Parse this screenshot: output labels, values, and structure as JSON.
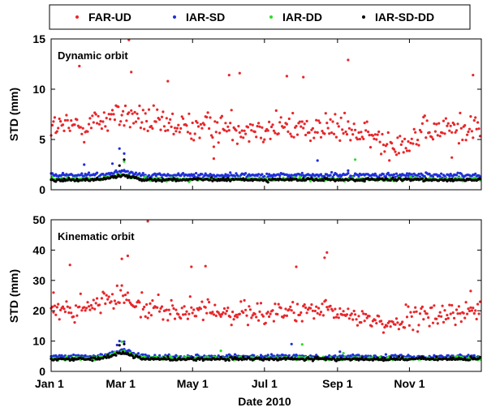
{
  "chart_data": {
    "type": "scatter",
    "title": "",
    "xlabel": "Date 2010",
    "x_range_days": [
      0,
      365
    ],
    "x_ticks": [
      {
        "label": "Jan 1",
        "day": 0
      },
      {
        "label": "Mar 1",
        "day": 59
      },
      {
        "label": "May 1",
        "day": 120
      },
      {
        "label": "Jul 1",
        "day": 181
      },
      {
        "label": "Sep 1",
        "day": 243
      },
      {
        "label": "Nov 1",
        "day": 304
      }
    ],
    "legend": {
      "placement": "top",
      "entries": [
        {
          "name": "FAR-UD",
          "color": "#e8262a"
        },
        {
          "name": "IAR-SD",
          "color": "#1f2fd8"
        },
        {
          "name": "IAR-DD",
          "color": "#2edc2e"
        },
        {
          "name": "IAR-SD-DD",
          "color": "#000000"
        }
      ]
    },
    "panels": [
      {
        "id": "dynamic",
        "label": "Dynamic orbit",
        "ylabel": "STD (mm)",
        "ylim": [
          0,
          15
        ],
        "yticks": [
          0,
          5,
          10,
          15
        ],
        "series_model": {
          "FAR-UD": {
            "mean": 6.2,
            "spread": 1.9,
            "min": 2.9,
            "outliers": [
              [
                24,
                12.3
              ],
              [
                66,
                14.9
              ],
              [
                68,
                11.7
              ],
              [
                99,
                10.8
              ],
              [
                151,
                11.4
              ],
              [
                160,
                11.6
              ],
              [
                200,
                11.3
              ],
              [
                214,
                11.2
              ],
              [
                252,
                12.9
              ],
              [
                358,
                11.4
              ],
              [
                340,
                3.2
              ],
              [
                138,
                3.1
              ]
            ]
          },
          "IAR-SD": {
            "mean": 1.45,
            "spread": 0.3,
            "min": 0.8,
            "outliers": [
              [
                52,
                2.6
              ],
              [
                58,
                4.1
              ],
              [
                62,
                3.6
              ],
              [
                252,
                1.9
              ],
              [
                226,
                2.9
              ],
              [
                28,
                2.5
              ]
            ]
          },
          "IAR-DD": {
            "mean": 1.05,
            "spread": 0.22,
            "min": 0.55,
            "outliers": [
              [
                62,
                2.8
              ],
              [
                258,
                3.0
              ]
            ]
          },
          "IAR-SD-DD": {
            "mean": 1.0,
            "spread": 0.2,
            "min": 0.5,
            "outliers": [
              [
                62,
                3.0
              ],
              [
                58,
                2.4
              ]
            ]
          }
        }
      },
      {
        "id": "kinematic",
        "label": "Kinematic orbit",
        "ylabel": "STD (mm)",
        "ylim": [
          0,
          50
        ],
        "yticks": [
          0,
          10,
          20,
          30,
          40,
          50
        ],
        "series_model": {
          "FAR-UD": {
            "mean": 19.5,
            "spread": 4.8,
            "min": 10,
            "outliers": [
              [
                16,
                35.1
              ],
              [
                60,
                37.1
              ],
              [
                65,
                38.1
              ],
              [
                82,
                49.5
              ],
              [
                119,
                34.5
              ],
              [
                131,
                34.7
              ],
              [
                208,
                34.5
              ],
              [
                234,
                39.2
              ],
              [
                232,
                37.5
              ],
              [
                356,
                26.5
              ],
              [
                2,
                26.0
              ]
            ]
          },
          "IAR-SD": {
            "mean": 4.9,
            "spread": 0.8,
            "min": 2.5,
            "outliers": [
              [
                56,
                8.7
              ],
              [
                58,
                10.0
              ],
              [
                62,
                9.8
              ],
              [
                204,
                9.0
              ],
              [
                245,
                6.5
              ],
              [
                284,
                5.6
              ],
              [
                330,
                5.1
              ]
            ]
          },
          "IAR-DD": {
            "mean": 4.3,
            "spread": 0.7,
            "min": 2.5,
            "outliers": [
              [
                60,
                9.8
              ],
              [
                144,
                6.8
              ],
              [
                213,
                8.9
              ],
              [
                248,
                6.0
              ]
            ]
          },
          "IAR-SD-DD": {
            "mean": 4.1,
            "spread": 0.7,
            "min": 2.4,
            "outliers": [
              [
                58,
                8.6
              ],
              [
                62,
                9.0
              ]
            ]
          }
        }
      }
    ]
  }
}
